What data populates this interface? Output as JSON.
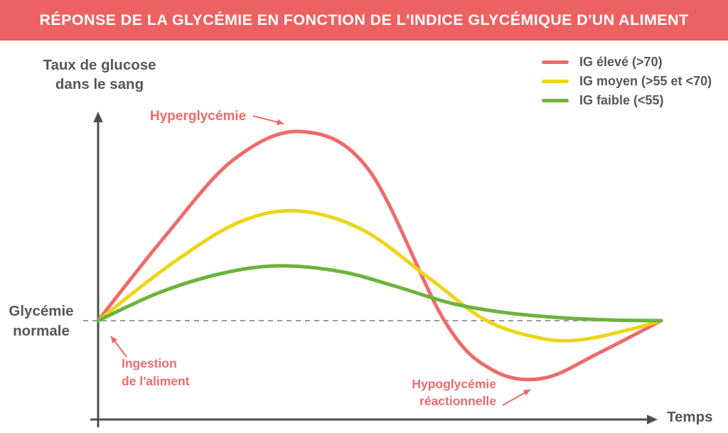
{
  "banner": {
    "title": "RÉPONSE DE LA GLYCÉMIE EN FONCTION DE L'INDICE GLYCÉMIQUE D'UN ALIMENT"
  },
  "colors": {
    "banner_background": "#ee6162",
    "high_gi": "#ee6a6a",
    "medium_gi": "#ecd516",
    "low_gi": "#6cb33d",
    "axis": "#4d4d4d",
    "text_gray": "#55565a",
    "annotation_red": "#ee6a6a",
    "baseline_dash": "#999999"
  },
  "axes": {
    "y_label_line1": "Taux de glucose",
    "y_label_line2": "dans le sang",
    "x_label": "Temps",
    "baseline_label_line1": "Glycémie",
    "baseline_label_line2": "normale"
  },
  "legend": {
    "items": [
      {
        "id": "high",
        "label": "IG élevé (>70)",
        "color": "#ee6a6a"
      },
      {
        "id": "medium",
        "label": "IG moyen (>55 et <70)",
        "color": "#ecd516"
      },
      {
        "id": "low",
        "label": "IG faible (<55)",
        "color": "#6cb33d"
      }
    ]
  },
  "annotations": {
    "hyperglycemia": "Hyperglycémie",
    "ingestion_line1": "Ingestion",
    "ingestion_line2": "de l'aliment",
    "hypoglycemia_line1": "Hypoglycémie",
    "hypoglycemia_line2": "réactionnelle"
  },
  "chart_data": {
    "type": "line",
    "title": "RÉPONSE DE LA GLYCÉMIE EN FONCTION DE L'INDICE GLYCÉMIQUE D'UN ALIMENT",
    "xlabel": "Temps",
    "ylabel": "Taux de glucose dans le sang",
    "baseline_label": "Glycémie normale",
    "x_units": "relative time 0-10 (axis unlabeled)",
    "y_units": "glucose relative to normal baseline (0 = Glycémie normale, 1 = peak of high-GI curve)",
    "baseline": 0,
    "grid": false,
    "legend_position": "top-right",
    "series": [
      {
        "id": "high",
        "name": "IG élevé (>70)",
        "color": "#ee6a6a",
        "points": [
          [
            0,
            0
          ],
          [
            1.2,
            0.45
          ],
          [
            2.4,
            0.85
          ],
          [
            3.6,
            1.0
          ],
          [
            4.8,
            0.8
          ],
          [
            6.15,
            0
          ],
          [
            7.0,
            -0.26
          ],
          [
            7.9,
            -0.305
          ],
          [
            8.9,
            -0.17
          ],
          [
            10,
            0
          ]
        ]
      },
      {
        "id": "medium",
        "name": "IG moyen (>55 et <70)",
        "color": "#ecd516",
        "points": [
          [
            0,
            0
          ],
          [
            1.3,
            0.3
          ],
          [
            2.5,
            0.52
          ],
          [
            3.55,
            0.58
          ],
          [
            4.7,
            0.48
          ],
          [
            5.9,
            0.22
          ],
          [
            6.9,
            0
          ],
          [
            7.9,
            -0.095
          ],
          [
            8.6,
            -0.1
          ],
          [
            9.4,
            -0.05
          ],
          [
            10,
            0
          ]
        ]
      },
      {
        "id": "low",
        "name": "IG faible (<55)",
        "color": "#6cb33d",
        "points": [
          [
            0,
            0
          ],
          [
            1.1,
            0.15
          ],
          [
            2.2,
            0.25
          ],
          [
            3.2,
            0.29
          ],
          [
            4.3,
            0.26
          ],
          [
            5.3,
            0.18
          ],
          [
            6.3,
            0.09
          ],
          [
            7.3,
            0.04
          ],
          [
            8.4,
            0.012
          ],
          [
            9.2,
            0.003
          ],
          [
            10,
            0
          ]
        ]
      }
    ],
    "annotations": [
      {
        "text": "Hyperglycémie",
        "points_to": "peak of the IG élevé curve"
      },
      {
        "text": "Ingestion de l'aliment",
        "points_to": "origin of the curves on the normal-glycemia baseline"
      },
      {
        "text": "Hypoglycémie réactionnelle",
        "points_to": "trough of the IG élevé curve below the baseline"
      }
    ]
  }
}
